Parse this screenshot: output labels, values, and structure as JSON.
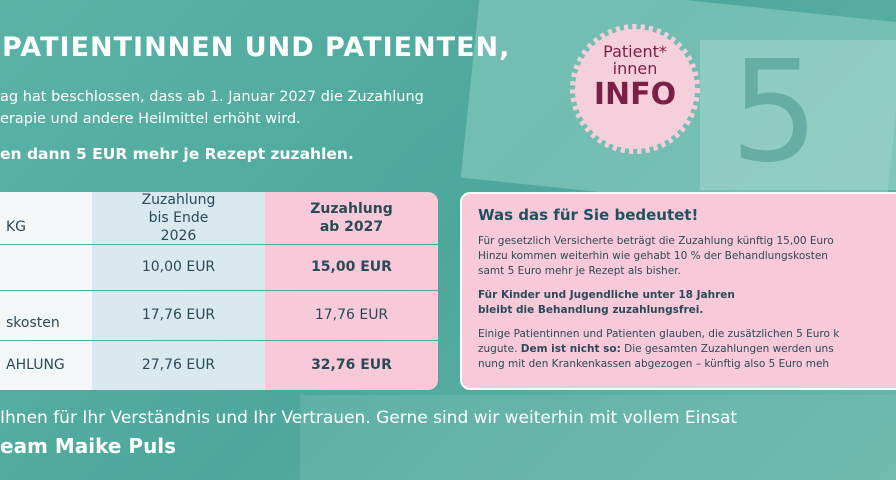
{
  "header": {
    "title": "PATIENTINNEN UND PATIENTEN,",
    "intro": [
      "ag hat beschlossen, dass ab 1. Januar 2027 die Zuzahlung",
      "erapie und andere Heilmittel erhöht wird."
    ],
    "highlight": "en dann 5 EUR mehr je Rezept zuzahlen."
  },
  "badge": {
    "line1": "Patient*",
    "line2": "innen",
    "line3": "INFO"
  },
  "table": {
    "headers": [
      "KG",
      "Zuzahlung bis Ende 2026",
      "Zuzahlung ab 2027"
    ],
    "rows": [
      {
        "cells": [
          "10,00 EUR",
          "15,00 EUR"
        ]
      },
      {
        "label": "skosten",
        "cells": [
          "17,76 EUR",
          "17,76 EUR"
        ]
      },
      {
        "label": "AHLUNG",
        "cells": [
          "27,76 EUR",
          "32,76 EUR"
        ]
      }
    ]
  },
  "info": {
    "title": "Was das für Sie bedeutet!",
    "p1": [
      "Für gesetzlich Versicherte beträgt die Zuzahlung künftig 15,00 Euro",
      "Hinzu kommen weiterhin wie gehabt 10 % der Behandlungskosten",
      "samt 5 Euro mehr je Rezept als bisher."
    ],
    "p2": [
      "Für Kinder und Jugendliche unter 18 Jahren",
      "bleibt die Behandlung zuzahlungsfrei."
    ],
    "p3": {
      "line1": "Einige Patientinnen und Patienten glauben, die zusätzlichen 5 Euro k",
      "line2_start": "zugute.",
      "line2_bold": "Dem ist nicht so:",
      "line2_end": "Die gesamten Zuzahlungen werden uns",
      "line3": "nung mit den Krankenkassen abgezogen – künftig also 5 Euro meh"
    }
  },
  "footer": {
    "thanks": "Ihnen für Ihr Verständnis und Ihr Vertrauen. Gerne sind wir weiterhin mit vollem Einsat",
    "team": "eam Maike Puls"
  }
}
